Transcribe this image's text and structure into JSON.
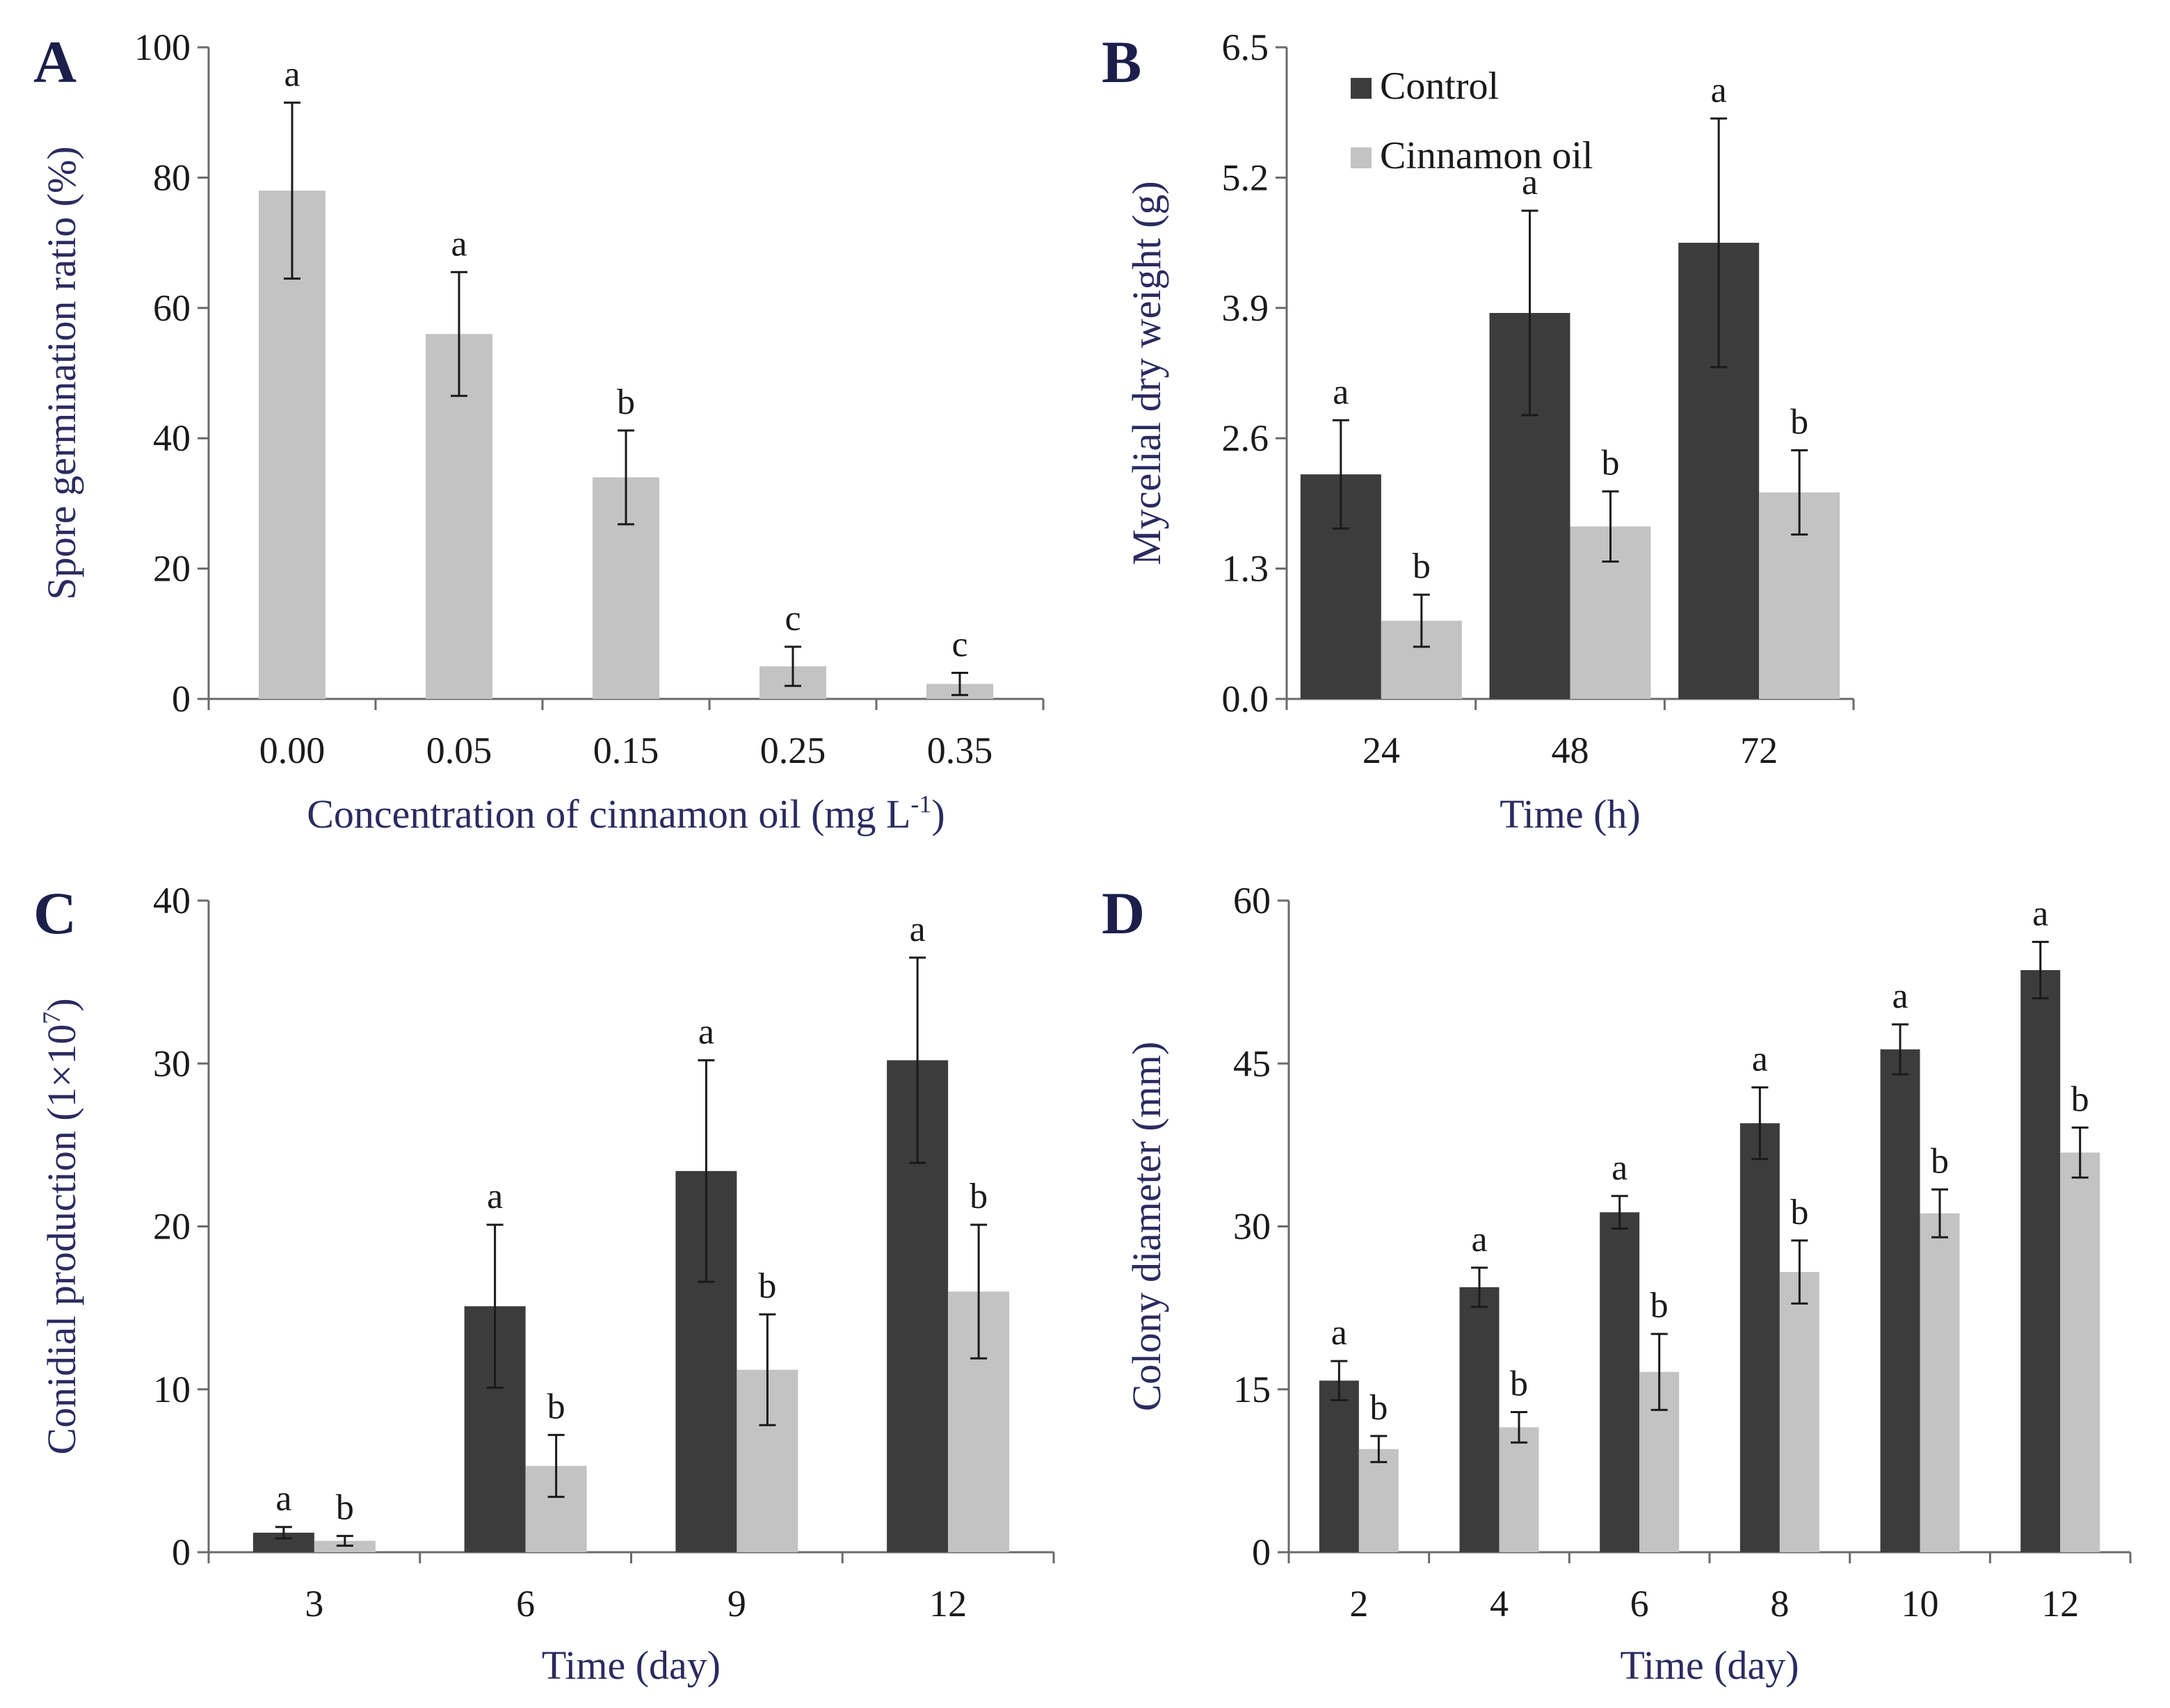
{
  "colors": {
    "control": "#3c3c3c",
    "cinnamon": "#c3c3c3",
    "axis": "#6a6a6a",
    "error": "#1a1a1a"
  },
  "legend": {
    "items": [
      {
        "label": "Control",
        "color": "#3c3c3c"
      },
      {
        "label": "Cinnamon oil",
        "color": "#c3c3c3"
      }
    ]
  },
  "chart_data": [
    {
      "panel": "A",
      "type": "bar",
      "xlabel": "Concentration of cinnamon oil (mg L",
      "xlabel_sup": "-1",
      "xlabel_tail": ")",
      "ylabel": "Spore germination ratio (%)",
      "ylim": [
        0,
        100
      ],
      "yticks": [
        "0",
        "20",
        "40",
        "60",
        "80",
        "100"
      ],
      "categories": [
        "0.00",
        "0.05",
        "0.15",
        "0.25",
        "0.35"
      ],
      "series": [
        {
          "name": "Cinnamon oil",
          "color": "#c3c3c3",
          "values": [
            78,
            56,
            34,
            5,
            2.3
          ],
          "errors": [
            13.5,
            9.5,
            7.2,
            3,
            1.7
          ],
          "labels": [
            "a",
            "a",
            "b",
            "c",
            "c"
          ]
        }
      ]
    },
    {
      "panel": "B",
      "type": "bar",
      "xlabel": "Time (h)",
      "ylabel": "Mycelial dry weight (g)",
      "ylim": [
        0,
        6.5
      ],
      "yticks": [
        "0.0",
        "1.3",
        "2.6",
        "3.9",
        "5.2",
        "6.5"
      ],
      "categories": [
        "24",
        "48",
        "72"
      ],
      "series": [
        {
          "name": "Control",
          "color": "#3c3c3c",
          "values": [
            2.24,
            3.85,
            4.55
          ],
          "errors": [
            0.54,
            1.02,
            1.24
          ],
          "labels": [
            "a",
            "a",
            "a"
          ]
        },
        {
          "name": "Cinnamon oil",
          "color": "#c3c3c3",
          "values": [
            0.78,
            1.72,
            2.06
          ],
          "errors": [
            0.26,
            0.35,
            0.42
          ],
          "labels": [
            "b",
            "b",
            "b"
          ]
        }
      ]
    },
    {
      "panel": "C",
      "type": "bar",
      "xlabel": "Time (day)",
      "ylabel": "Conidial production (1×10",
      "ylabel_sup": "7",
      "ylabel_tail": ")",
      "ylim": [
        0,
        40
      ],
      "yticks": [
        "0",
        "10",
        "20",
        "30",
        "40"
      ],
      "categories": [
        "3",
        "6",
        "9",
        "12"
      ],
      "series": [
        {
          "name": "Control",
          "color": "#3c3c3c",
          "values": [
            1.2,
            15.1,
            23.4,
            30.2
          ],
          "errors": [
            0.35,
            5,
            6.8,
            6.3
          ],
          "labels": [
            "a",
            "a",
            "a",
            "a"
          ]
        },
        {
          "name": "Cinnamon oil",
          "color": "#c3c3c3",
          "values": [
            0.7,
            5.3,
            11.2,
            16
          ],
          "errors": [
            0.3,
            1.9,
            3.4,
            4.1
          ],
          "labels": [
            "b",
            "b",
            "b",
            "b"
          ]
        }
      ]
    },
    {
      "panel": "D",
      "type": "bar",
      "xlabel": "Time (day)",
      "ylabel": "Colony diameter (mm)",
      "ylim": [
        0,
        60
      ],
      "yticks": [
        "0",
        "15",
        "30",
        "45",
        "60"
      ],
      "categories": [
        "2",
        "4",
        "6",
        "8",
        "10",
        "12"
      ],
      "series": [
        {
          "name": "Control",
          "color": "#3c3c3c",
          "values": [
            15.8,
            24.4,
            31.3,
            39.5,
            46.3,
            53.6
          ],
          "errors": [
            1.8,
            1.8,
            1.5,
            3.3,
            2.3,
            2.6
          ],
          "labels": [
            "a",
            "a",
            "a",
            "a",
            "a",
            "a"
          ]
        },
        {
          "name": "Cinnamon oil",
          "color": "#c3c3c3",
          "values": [
            9.5,
            11.5,
            16.6,
            25.8,
            31.2,
            36.8
          ],
          "errors": [
            1.2,
            1.4,
            3.5,
            2.9,
            2.2,
            2.3
          ],
          "labels": [
            "b",
            "b",
            "b",
            "b",
            "b",
            "b"
          ]
        }
      ]
    }
  ]
}
